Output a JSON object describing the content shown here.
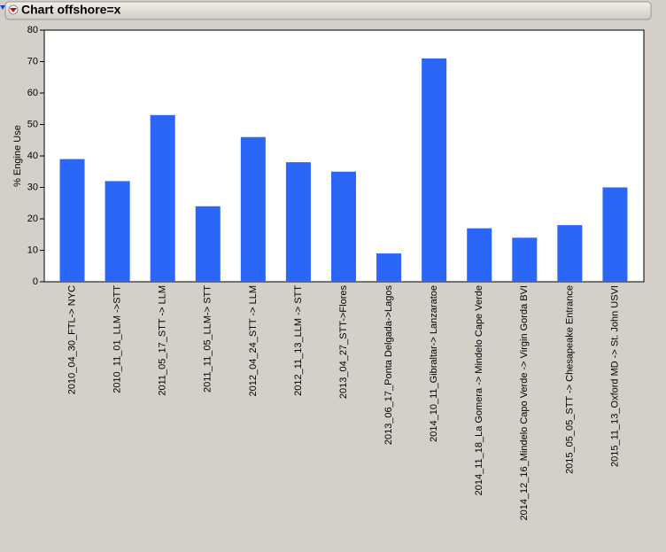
{
  "chart_data": {
    "type": "bar",
    "title": "Chart offshore=x",
    "y_label": "% Engine Use",
    "categories": [
      "2010_04_30_FTL-> NYC",
      "2010_11_01_LLM ->STT",
      "2011_05_17_STT -> LLM",
      "2011_11_05_LLM-> STT",
      "2012_04_24_STT -> LLM",
      "2012_11_13_LLM -> STT",
      "2013_04_27_STT->Flores",
      "2013_06_17_Ponta Delgada->Lagos",
      "2014_10_11_Gibraltar-> Lanzaratoe",
      "2014_11_18_La Gomera -> Mindelo Cape Verde",
      "2014_12_16_Mindelo Capo Verde -> Virgin Gorda BVI",
      "2015_05_05_STT -> Chesapeake Entrance",
      "2015_11_13_Oxford MD -> St. John USVI"
    ],
    "values": [
      39,
      32,
      53,
      24,
      46,
      38,
      35,
      9,
      71,
      17,
      14,
      18,
      30
    ],
    "color": "#2a66f8",
    "ylim": [
      0,
      80
    ],
    "yticks": [
      0,
      10,
      20,
      30,
      40,
      50,
      60,
      70,
      80
    ],
    "grid": false
  }
}
